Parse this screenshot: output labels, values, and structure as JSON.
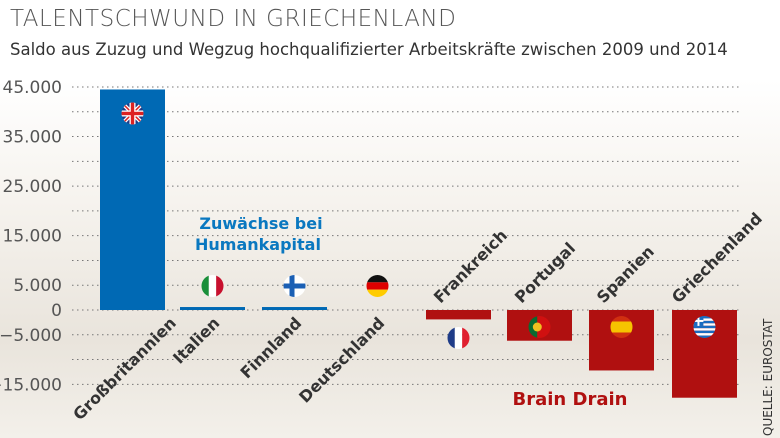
{
  "header": {
    "title": "TALENTSCHWUND IN GRIECHENLAND",
    "subtitle": "Saldo aus Zuzug und Wegzug hochqualifizierter Arbeitskräfte zwischen 2009 und 2014"
  },
  "source": "QUELLE: EUROSTAT",
  "colors": {
    "positive": "#0069b4",
    "negative": "#b01010",
    "positive_text": "#0a78c0",
    "negative_text": "#b01010"
  },
  "chart_data": {
    "type": "bar",
    "title": "TALENTSCHWUND IN GRIECHENLAND",
    "subtitle": "Saldo aus Zuzug und Wegzug hochqualifizierter Arbeitskräfte zwischen 2009 und 2014",
    "categories": [
      "Großbritannien",
      "Italien",
      "Finnland",
      "Deutschland",
      "Frankreich",
      "Portugal",
      "Spanien",
      "Griechenland"
    ],
    "flags": [
      "uk",
      "it",
      "fi",
      "de",
      "fr",
      "pt",
      "es",
      "gr"
    ],
    "values": [
      44500,
      600,
      600,
      0,
      -1900,
      -6200,
      -12200,
      -17700
    ],
    "ylim": [
      -17700,
      45000
    ],
    "yticks": [
      45000,
      35000,
      25000,
      15000,
      5000,
      0,
      -5000,
      -15000
    ],
    "ytick_labels": [
      "45.000",
      "35.000",
      "25.000",
      "15.000",
      "5.000",
      "0",
      "−5.000",
      "−15.000"
    ],
    "gridlines": [
      45000,
      40000,
      35000,
      30000,
      25000,
      20000,
      15000,
      10000,
      5000,
      -5000,
      -10000,
      -15000
    ],
    "grid": true,
    "annotations": {
      "positive": [
        "Zuwächse bei",
        "Humankapital"
      ],
      "negative": "Brain Drain"
    }
  }
}
